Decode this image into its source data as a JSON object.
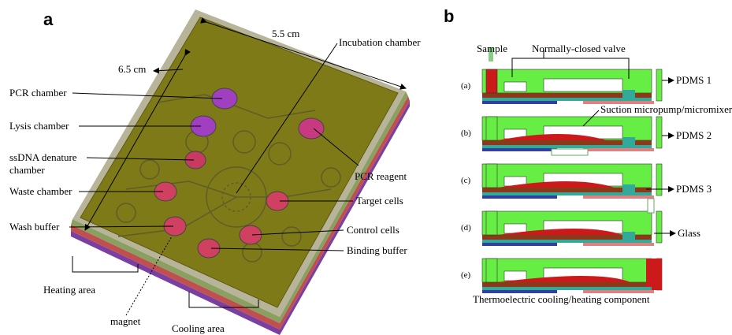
{
  "panel_a": {
    "label": "a",
    "width_dimension": "5.5 cm",
    "height_dimension": "6.5 cm",
    "callouts": {
      "incubation": "Incubation chamber",
      "pcr_chamber": "PCR chamber",
      "lysis": "Lysis chamber",
      "ssdna": [
        "ssDNA denature",
        "chamber"
      ],
      "waste": "Waste chamber",
      "wash": "Wash buffer",
      "pcr_reagent": "PCR reagent",
      "target": "Target cells",
      "control": "Control cells",
      "binding": "Binding buffer",
      "heating": "Heating area",
      "magnet": "magnet",
      "cooling": "Cooling area"
    }
  },
  "panel_b": {
    "label": "b",
    "sample": "Sample",
    "valve": "Normally-closed valve",
    "steps": [
      "(a)",
      "(b)",
      "(c)",
      "(d)",
      "(e)"
    ],
    "pdms1": "PDMS 1",
    "micropump": "Suction micropump/micromixer",
    "pdms2": "PDMS 2",
    "pdms3": "PDMS 3",
    "glass": "Glass",
    "thermo": "Thermoelectric cooling/heating component"
  }
}
